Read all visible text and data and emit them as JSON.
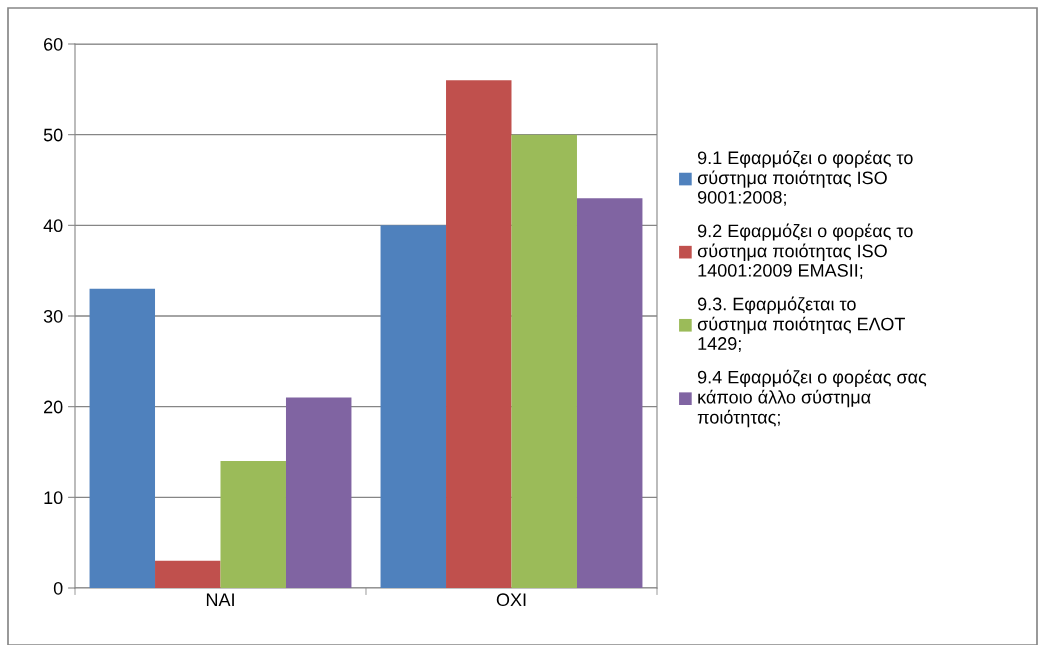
{
  "chart_data": {
    "type": "bar",
    "categories": [
      "NAI",
      "OXI"
    ],
    "series": [
      {
        "name": "9.1 Εφαρμόζει ο φορέας το\nσύστημα ποιότητας ISO\n9001:2008;",
        "color": "#4f81bd",
        "values": [
          33,
          40
        ]
      },
      {
        "name": "9.2 Εφαρμόζει ο φορέας το\nσύστημα ποιότητας ISO\n14001:2009 EMASII;",
        "color": "#c0504d",
        "values": [
          3,
          56
        ]
      },
      {
        "name": "9.3. Εφαρμόζεται το\nσύστημα ποιότητας ΕΛΟΤ\n1429;",
        "color": "#9bbb59",
        "values": [
          14,
          50
        ]
      },
      {
        "name": "9.4 Εφαρμόζει ο φορέας σας\nκάποιο άλλο σύστημα\nποιότητας;",
        "color": "#8064a2",
        "values": [
          21,
          43
        ]
      }
    ],
    "ylim": [
      0,
      60
    ],
    "yticks": [
      0,
      10,
      20,
      30,
      40,
      50,
      60
    ],
    "grid": "y",
    "legend": "right"
  }
}
